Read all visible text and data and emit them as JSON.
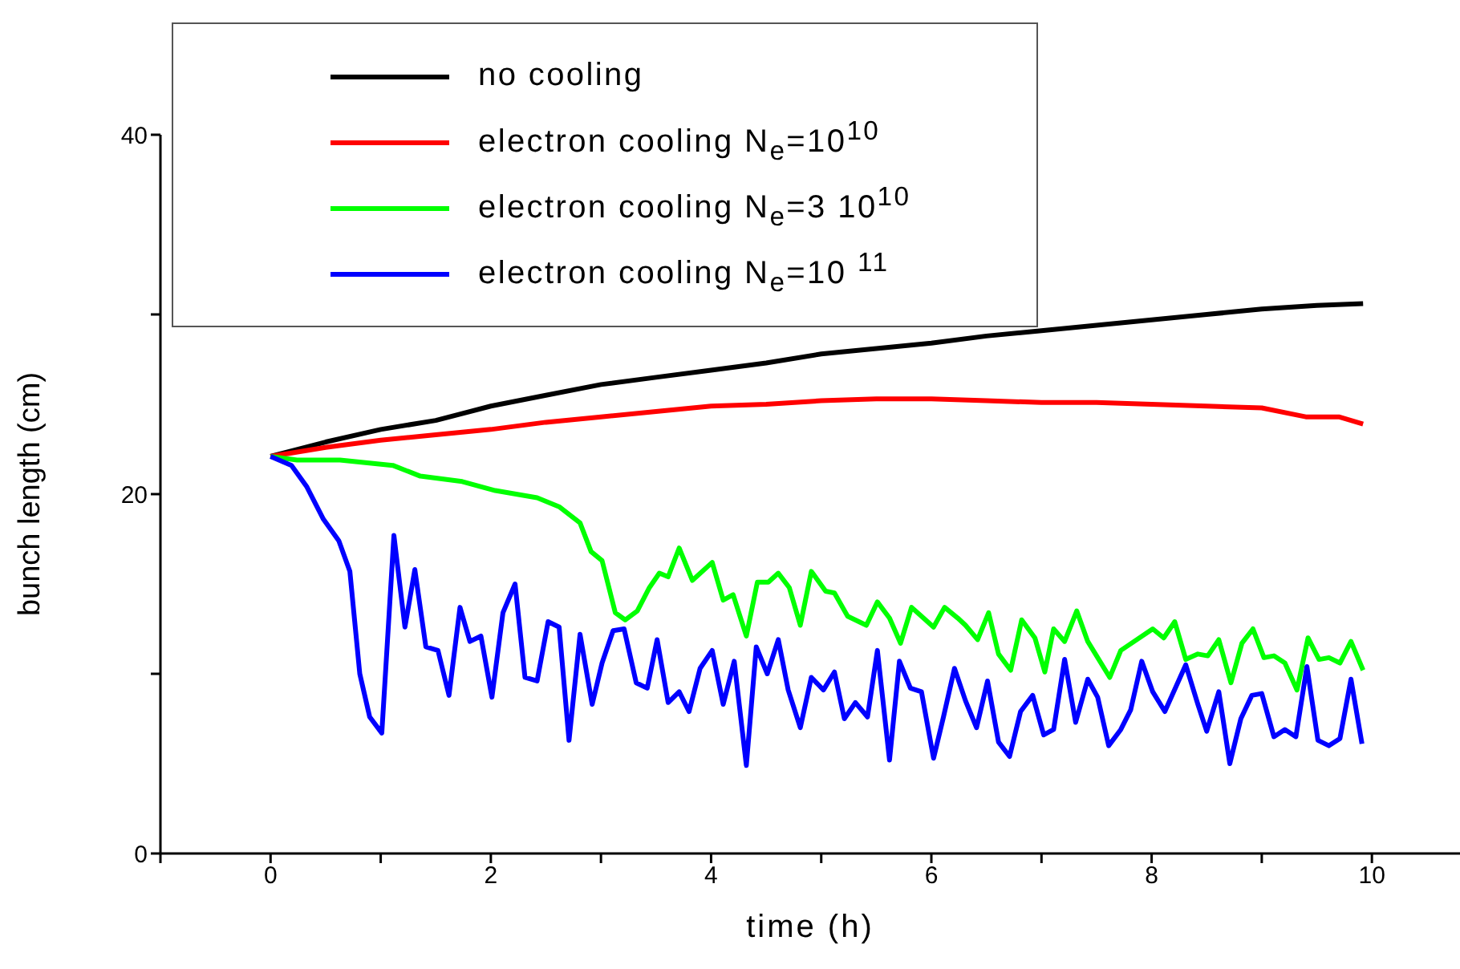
{
  "chart_data": {
    "type": "line",
    "xlabel": "time (h)",
    "ylabel": "bunch length (cm)",
    "xlim": [
      -1,
      10.8
    ],
    "ylim": [
      0,
      40
    ],
    "xticks": [
      {
        "value": -1,
        "label": null
      },
      0,
      {
        "value": 1,
        "label": null
      },
      2,
      {
        "value": 3,
        "label": null
      },
      4,
      {
        "value": 5,
        "label": null
      },
      6,
      {
        "value": 7,
        "label": null
      },
      8,
      {
        "value": 9,
        "label": null
      },
      10
    ],
    "yticks": [
      0,
      {
        "value": 10,
        "label": null
      },
      20,
      {
        "value": 30,
        "label": null
      },
      40
    ],
    "grid": false,
    "legend": "top left",
    "series": [
      {
        "name": "no cooling",
        "color": "#000000",
        "x": [
          0,
          0.5,
          1,
          1.5,
          2,
          2.5,
          3,
          3.5,
          4,
          4.5,
          5,
          5.5,
          6,
          6.5,
          7,
          7.5,
          8,
          8.5,
          9,
          9.5,
          9.92
        ],
        "values": [
          22.1,
          22.9,
          23.6,
          24.1,
          24.9,
          25.5,
          26.1,
          26.5,
          26.9,
          27.3,
          27.8,
          28.1,
          28.4,
          28.8,
          29.1,
          29.4,
          29.7,
          30.0,
          30.3,
          30.5,
          30.6
        ]
      },
      {
        "name": "electron cooling N$_{e}$=10$^{10}$",
        "color": "#ff0000",
        "x": [
          0,
          0.5,
          1,
          1.5,
          2,
          2.5,
          3,
          3.5,
          4,
          4.5,
          5,
          5.5,
          6,
          6.5,
          7,
          7.5,
          8,
          8.5,
          9,
          9.4,
          9.7,
          9.92
        ],
        "values": [
          22.1,
          22.6,
          23.0,
          23.3,
          23.6,
          24.0,
          24.3,
          24.6,
          24.9,
          25.0,
          25.2,
          25.3,
          25.3,
          25.2,
          25.1,
          25.1,
          25.0,
          24.9,
          24.8,
          24.3,
          24.3,
          23.9
        ]
      },
      {
        "name": "electron cooling N$_{e}$=3 10$^{10}$",
        "color": "#00ff00",
        "x": [
          0,
          0.24,
          0.63,
          1.11,
          1.36,
          1.74,
          2.04,
          2.23,
          2.42,
          2.62,
          2.81,
          2.91,
          3.01,
          3.13,
          3.22,
          3.33,
          3.44,
          3.53,
          3.61,
          3.71,
          3.83,
          4.01,
          4.11,
          4.2,
          4.32,
          4.42,
          4.52,
          4.61,
          4.71,
          4.81,
          4.91,
          5.04,
          5.12,
          5.24,
          5.41,
          5.51,
          5.62,
          5.72,
          5.82,
          6.02,
          6.12,
          6.24,
          6.31,
          6.42,
          6.52,
          6.61,
          6.72,
          6.82,
          6.94,
          7.03,
          7.11,
          7.21,
          7.32,
          7.42,
          7.62,
          7.72,
          8.01,
          8.11,
          8.21,
          8.31,
          8.42,
          8.51,
          8.61,
          8.72,
          8.82,
          8.92,
          9.02,
          9.11,
          9.21,
          9.32,
          9.42,
          9.52,
          9.61,
          9.71,
          9.81,
          9.92
        ],
        "values": [
          22.1,
          21.9,
          21.9,
          21.6,
          21.0,
          20.7,
          20.2,
          20.0,
          19.8,
          19.3,
          18.4,
          16.8,
          16.3,
          13.4,
          13.0,
          13.5,
          14.8,
          15.6,
          15.4,
          17.0,
          15.2,
          16.2,
          14.1,
          14.4,
          12.1,
          15.1,
          15.1,
          15.6,
          14.8,
          12.7,
          15.7,
          14.6,
          14.5,
          13.2,
          12.7,
          14.0,
          13.1,
          11.7,
          13.7,
          12.6,
          13.7,
          13.1,
          12.7,
          11.9,
          13.4,
          11.1,
          10.2,
          13.0,
          12.0,
          10.1,
          12.5,
          11.8,
          13.5,
          11.8,
          9.8,
          11.3,
          12.5,
          12.0,
          12.9,
          10.8,
          11.1,
          11.0,
          11.9,
          9.5,
          11.7,
          12.5,
          10.9,
          11.0,
          10.6,
          9.1,
          12.0,
          10.8,
          10.9,
          10.6,
          11.8,
          10.2
        ]
      },
      {
        "name": "electron cooling N$_{e}$=10 $^{11}$",
        "color": "#0000ff",
        "x": [
          0,
          0.19,
          0.33,
          0.48,
          0.62,
          0.72,
          0.81,
          0.9,
          1.01,
          1.12,
          1.22,
          1.31,
          1.41,
          1.52,
          1.62,
          1.72,
          1.81,
          1.91,
          2.01,
          2.11,
          2.22,
          2.31,
          2.42,
          2.52,
          2.62,
          2.71,
          2.81,
          2.92,
          3.01,
          3.11,
          3.21,
          3.32,
          3.42,
          3.51,
          3.61,
          3.71,
          3.8,
          3.9,
          4.01,
          4.11,
          4.21,
          4.32,
          4.41,
          4.51,
          4.61,
          4.7,
          4.81,
          4.91,
          5.02,
          5.12,
          5.21,
          5.31,
          5.42,
          5.51,
          5.62,
          5.71,
          5.81,
          5.91,
          6.02,
          6.11,
          6.21,
          6.31,
          6.41,
          6.51,
          6.61,
          6.71,
          6.81,
          6.92,
          7.02,
          7.11,
          7.21,
          7.31,
          7.42,
          7.51,
          7.61,
          7.72,
          7.81,
          7.91,
          8.01,
          8.12,
          8.31,
          8.42,
          8.5,
          8.61,
          8.71,
          8.81,
          8.91,
          9.0,
          9.11,
          9.21,
          9.31,
          9.41,
          9.51,
          9.61,
          9.71,
          9.81,
          9.91
        ],
        "values": [
          22.1,
          21.6,
          20.4,
          18.6,
          17.4,
          15.7,
          10.0,
          7.6,
          6.7,
          17.7,
          12.6,
          15.8,
          11.5,
          11.3,
          8.8,
          13.7,
          11.8,
          12.1,
          8.7,
          13.4,
          15.0,
          9.8,
          9.6,
          12.9,
          12.6,
          6.3,
          12.2,
          8.3,
          10.6,
          12.4,
          12.5,
          9.5,
          9.2,
          11.9,
          8.4,
          9.0,
          7.9,
          10.3,
          11.3,
          8.3,
          10.7,
          4.9,
          11.5,
          10.0,
          11.9,
          9.1,
          7.0,
          9.8,
          9.1,
          10.1,
          7.5,
          8.4,
          7.6,
          11.3,
          5.2,
          10.7,
          9.2,
          9.0,
          5.3,
          7.6,
          10.3,
          8.5,
          7.0,
          9.6,
          6.2,
          5.4,
          7.9,
          8.8,
          6.6,
          6.9,
          10.8,
          7.3,
          9.7,
          8.7,
          6.0,
          6.9,
          8.0,
          10.7,
          9.0,
          7.9,
          10.5,
          8.3,
          6.8,
          9.0,
          5.0,
          7.5,
          8.8,
          8.9,
          6.5,
          6.9,
          6.5,
          10.4,
          6.3,
          6.0,
          6.4,
          9.7,
          6.1
        ]
      }
    ]
  }
}
